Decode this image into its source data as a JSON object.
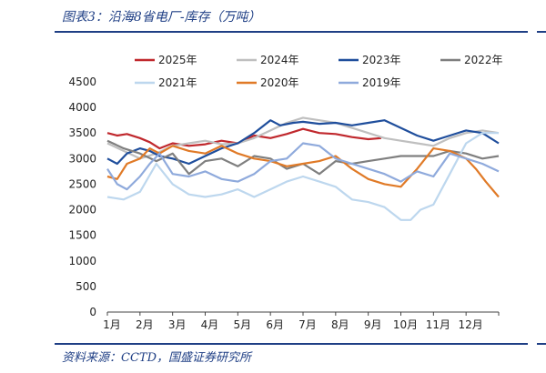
{
  "caption": "图表3：沿海8省电厂-库存（万吨）",
  "source": "资料来源：CCTD，国盛证券研究所",
  "chart_data": {
    "type": "line",
    "title": "",
    "xlabel": "",
    "ylabel": "",
    "ylim": [
      0,
      4500
    ],
    "yticks": [
      0,
      500,
      1000,
      1500,
      2000,
      2500,
      3000,
      3500,
      4000,
      4500
    ],
    "xlim": [
      1,
      13
    ],
    "xticks": [
      1,
      2,
      3,
      4,
      5,
      6,
      7,
      8,
      9,
      10,
      11,
      12
    ],
    "xtick_labels": [
      "1月",
      "2月",
      "3月",
      "4月",
      "5月",
      "6月",
      "7月",
      "8月",
      "9月",
      "10月",
      "11月",
      "12月"
    ],
    "grid": false,
    "legend_position": "top",
    "series": [
      {
        "name": "2025年",
        "color": "#c0282d",
        "x": [
          1.0,
          1.3,
          1.6,
          2.0,
          2.3,
          2.6,
          3.0,
          3.5,
          4.0,
          4.5,
          5.0,
          5.5,
          6.0,
          6.5,
          7.0,
          7.5,
          8.0,
          8.5,
          9.0,
          9.4
        ],
        "y": [
          3500,
          3450,
          3480,
          3400,
          3320,
          3200,
          3300,
          3250,
          3280,
          3350,
          3300,
          3450,
          3400,
          3480,
          3580,
          3500,
          3480,
          3420,
          3380,
          3400
        ]
      },
      {
        "name": "2024年",
        "color": "#bfbfbf",
        "x": [
          1.0,
          1.5,
          2.0,
          2.5,
          3.0,
          3.5,
          4.0,
          4.5,
          5.0,
          5.5,
          6.0,
          6.5,
          7.0,
          7.5,
          8.0,
          8.5,
          9.0,
          9.5,
          10.0,
          10.5,
          11.0,
          11.5,
          12.0,
          12.5,
          13.0
        ],
        "y": [
          3300,
          3150,
          3000,
          3100,
          3250,
          3300,
          3350,
          3280,
          3300,
          3400,
          3550,
          3700,
          3800,
          3750,
          3700,
          3600,
          3500,
          3400,
          3350,
          3300,
          3250,
          3400,
          3500,
          3550,
          3500
        ]
      },
      {
        "name": "2023年",
        "color": "#1f4e9c",
        "x": [
          1.0,
          1.3,
          1.6,
          2.0,
          2.3,
          2.6,
          3.0,
          3.5,
          4.0,
          4.5,
          5.0,
          5.5,
          6.0,
          6.3,
          6.7,
          7.0,
          7.5,
          8.0,
          8.5,
          9.0,
          9.5,
          10.0,
          10.5,
          11.0,
          11.5,
          12.0,
          12.5,
          13.0
        ],
        "y": [
          3000,
          2900,
          3100,
          3200,
          3150,
          3050,
          3000,
          2900,
          3050,
          3200,
          3300,
          3500,
          3750,
          3650,
          3700,
          3720,
          3680,
          3700,
          3650,
          3700,
          3750,
          3600,
          3450,
          3350,
          3450,
          3550,
          3500,
          3300
        ]
      },
      {
        "name": "2022年",
        "color": "#7f7f7f",
        "x": [
          1.0,
          1.5,
          2.0,
          2.5,
          3.0,
          3.5,
          4.0,
          4.5,
          5.0,
          5.5,
          6.0,
          6.5,
          7.0,
          7.5,
          8.0,
          8.5,
          9.0,
          9.5,
          10.0,
          10.5,
          11.0,
          11.5,
          12.0,
          12.5,
          13.0
        ],
        "y": [
          3350,
          3200,
          3100,
          2950,
          3100,
          2700,
          2950,
          3000,
          2850,
          3050,
          3000,
          2800,
          2900,
          2700,
          2950,
          2900,
          2950,
          3000,
          3050,
          3050,
          3050,
          3150,
          3100,
          3000,
          3050
        ]
      },
      {
        "name": "2021年",
        "color": "#bdd7ee",
        "x": [
          1.0,
          1.5,
          2.0,
          2.5,
          3.0,
          3.5,
          4.0,
          4.5,
          5.0,
          5.5,
          6.0,
          6.5,
          7.0,
          7.5,
          8.0,
          8.5,
          9.0,
          9.5,
          10.0,
          10.3,
          10.6,
          11.0,
          11.5,
          12.0,
          12.5,
          13.0
        ],
        "y": [
          2250,
          2200,
          2350,
          2900,
          2500,
          2300,
          2250,
          2300,
          2400,
          2250,
          2400,
          2550,
          2650,
          2550,
          2450,
          2200,
          2150,
          2050,
          1800,
          1800,
          2000,
          2100,
          2700,
          3300,
          3500,
          3500
        ]
      },
      {
        "name": "2020年",
        "color": "#e07a27",
        "x": [
          1.0,
          1.3,
          1.6,
          2.0,
          2.3,
          2.6,
          3.0,
          3.5,
          4.0,
          4.5,
          5.0,
          5.5,
          6.0,
          6.5,
          7.0,
          7.5,
          8.0,
          8.5,
          9.0,
          9.5,
          10.0,
          10.5,
          11.0,
          11.5,
          12.0,
          12.3,
          12.6,
          13.0
        ],
        "y": [
          2650,
          2600,
          2900,
          3000,
          3200,
          3100,
          3250,
          3150,
          3100,
          3250,
          3100,
          3000,
          2950,
          2850,
          2900,
          2950,
          3050,
          2800,
          2600,
          2500,
          2450,
          2800,
          3200,
          3150,
          3000,
          2800,
          2550,
          2250
        ]
      },
      {
        "name": "2019年",
        "color": "#8faadc",
        "x": [
          1.0,
          1.3,
          1.6,
          2.0,
          2.3,
          2.6,
          3.0,
          3.5,
          4.0,
          4.5,
          5.0,
          5.5,
          6.0,
          6.5,
          7.0,
          7.5,
          8.0,
          8.5,
          9.0,
          9.5,
          10.0,
          10.5,
          11.0,
          11.5,
          12.0,
          12.5,
          13.0
        ],
        "y": [
          2800,
          2500,
          2400,
          2650,
          2900,
          3100,
          2700,
          2650,
          2750,
          2600,
          2550,
          2700,
          2950,
          3000,
          3300,
          3250,
          3000,
          2900,
          2800,
          2700,
          2550,
          2750,
          2650,
          3100,
          3000,
          2900,
          2750
        ]
      }
    ]
  }
}
